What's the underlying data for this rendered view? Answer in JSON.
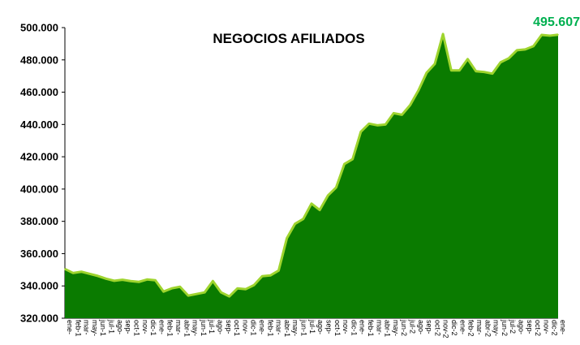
{
  "chart_data": {
    "type": "area",
    "title": "NEGOCIOS AFILIADOS",
    "last_value_label": "495.607",
    "ylim": [
      320000,
      500000
    ],
    "ytick_labels": [
      "320.000",
      "340.000",
      "360.000",
      "380.000",
      "400.000",
      "420.000",
      "440.000",
      "460.000",
      "480.000",
      "500.000"
    ],
    "yticks": [
      320000,
      340000,
      360000,
      380000,
      400000,
      420000,
      440000,
      460000,
      480000,
      500000
    ],
    "xtick_labels": [
      "ene-",
      "feb-1",
      "mar-",
      "may-",
      "jun-1",
      "jul-1",
      "ago-",
      "sep-",
      "oct-1",
      "nov-",
      "dic-1",
      "ene-",
      "feb-1",
      "mar-",
      "abr-1",
      "may-",
      "jun-1",
      "jul-1",
      "ago-",
      "sep-",
      "oct-1",
      "nov-",
      "dic-1",
      "ene-",
      "feb-1",
      "mar-",
      "abr-1",
      "may-",
      "jun-1",
      "jul-1",
      "ago-",
      "sep-",
      "oct-1",
      "nov-",
      "dic-1",
      "ene-",
      "feb-1",
      "mar-",
      "abr-1",
      "may-",
      "jun-2",
      "jul-2",
      "ago-",
      "sep-",
      "oct-2",
      "nov-2",
      "dic-2",
      "ene-",
      "feb-2",
      "mar-",
      "abr-2",
      "may-",
      "jun-2",
      "jul-2",
      "ago-",
      "sep-",
      "oct-2",
      "nov-",
      "dic-2",
      "ene-"
    ],
    "values": [
      350500,
      348000,
      348800,
      347500,
      346200,
      344500,
      343200,
      343800,
      343000,
      342500,
      344000,
      343500,
      336500,
      338500,
      339500,
      334000,
      335000,
      336000,
      343000,
      336000,
      333500,
      338500,
      338000,
      340500,
      346000,
      346500,
      349500,
      369500,
      378500,
      381500,
      391000,
      387000,
      396000,
      401000,
      415500,
      418500,
      435500,
      440500,
      439500,
      440000,
      447000,
      446000,
      452000,
      461000,
      472000,
      477500,
      496000,
      473500,
      473500,
      480500,
      473000,
      472500,
      471500,
      478500,
      481000,
      486000,
      486500,
      488500,
      495500,
      495000,
      495607
    ],
    "colors": {
      "fill": "#0a7b00",
      "line": "#9ed42e",
      "last_label": "#00b050"
    }
  }
}
